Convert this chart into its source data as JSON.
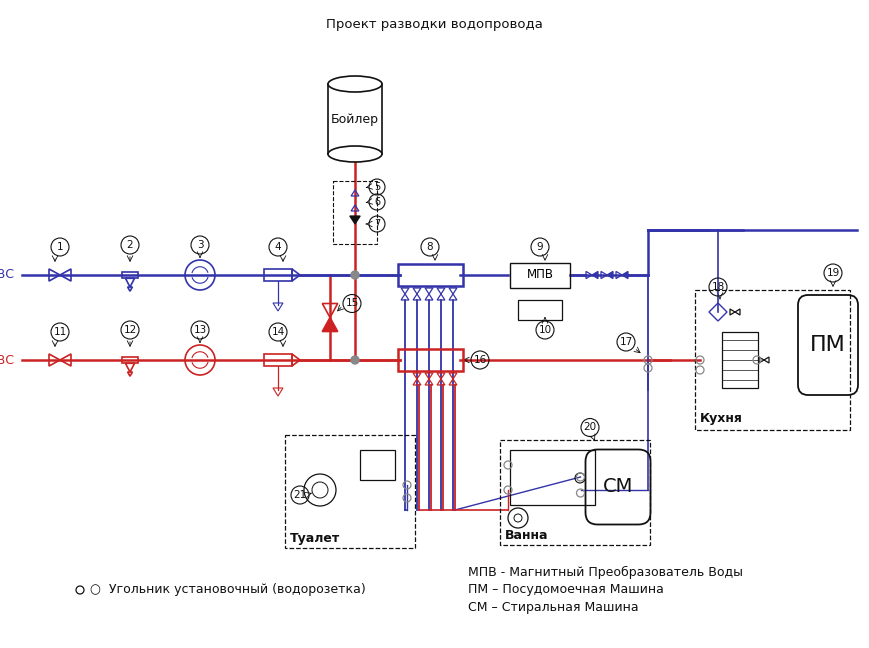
{
  "title": "Проект разводки водопровода",
  "blue": "#3333AA",
  "red": "#CC2222",
  "black": "#111111",
  "gray": "#888888",
  "bg": "#FFFFFF",
  "leg1": "○  Угольник установочный (водорозетка)",
  "leg2": "МПВ - Магнитный Преобразователь Воды",
  "leg3": "ПМ – Посудомоечная Машина",
  "leg4": "СМ – Стиральная Машина",
  "hvc": "ХВС",
  "gvc": "ГВС",
  "boiler": "Бойлер",
  "mpv": "МПВ",
  "pm": "ПМ",
  "sm": "СМ",
  "toilet": "Туалет",
  "bath": "Ванна",
  "kitchen": "Кухня"
}
